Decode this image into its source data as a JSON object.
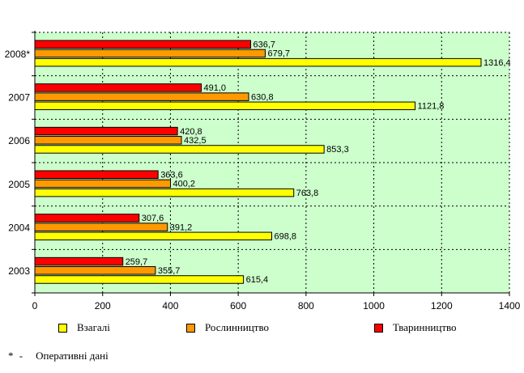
{
  "chart_data": {
    "type": "bar",
    "orientation": "horizontal",
    "categories": [
      "2003",
      "2004",
      "2005",
      "2006",
      "2007",
      "2008*"
    ],
    "series": [
      {
        "name": "Тваринництво",
        "color": "#ff0000",
        "values": [
          259.7,
          307.6,
          363.6,
          420.8,
          491.0,
          636.7
        ]
      },
      {
        "name": "Рослинництво",
        "color": "#ff9900",
        "values": [
          355.7,
          391.2,
          400.2,
          432.5,
          630.8,
          679.7
        ]
      },
      {
        "name": "Взагалі",
        "color": "#ffff00",
        "values": [
          615.4,
          698.8,
          763.8,
          853.3,
          1121.8,
          1316.4
        ]
      }
    ],
    "value_labels": [
      [
        "259,7",
        "307,6",
        "363,6",
        "420,8",
        "491,0",
        "636,7"
      ],
      [
        "355,7",
        "391,2",
        "400,2",
        "432,5",
        "630,8",
        "679,7"
      ],
      [
        "615,4",
        "698,8",
        "763,8",
        "853,3",
        "1121,8",
        "1316,4"
      ]
    ],
    "xlim": [
      0,
      1400
    ],
    "x_ticks": [
      0,
      200,
      400,
      600,
      800,
      1000,
      1200,
      1400
    ],
    "plot_background": "#ccffcc",
    "grid": true,
    "legend": [
      {
        "label": "Взагалі",
        "color": "#ffff00"
      },
      {
        "label": "Рослинництво",
        "color": "#ff9900"
      },
      {
        "label": "Тваринництво",
        "color": "#ff0000"
      }
    ],
    "legend_position": "bottom"
  },
  "footnote": {
    "mark": "* -",
    "text": "Оперативні дані"
  }
}
